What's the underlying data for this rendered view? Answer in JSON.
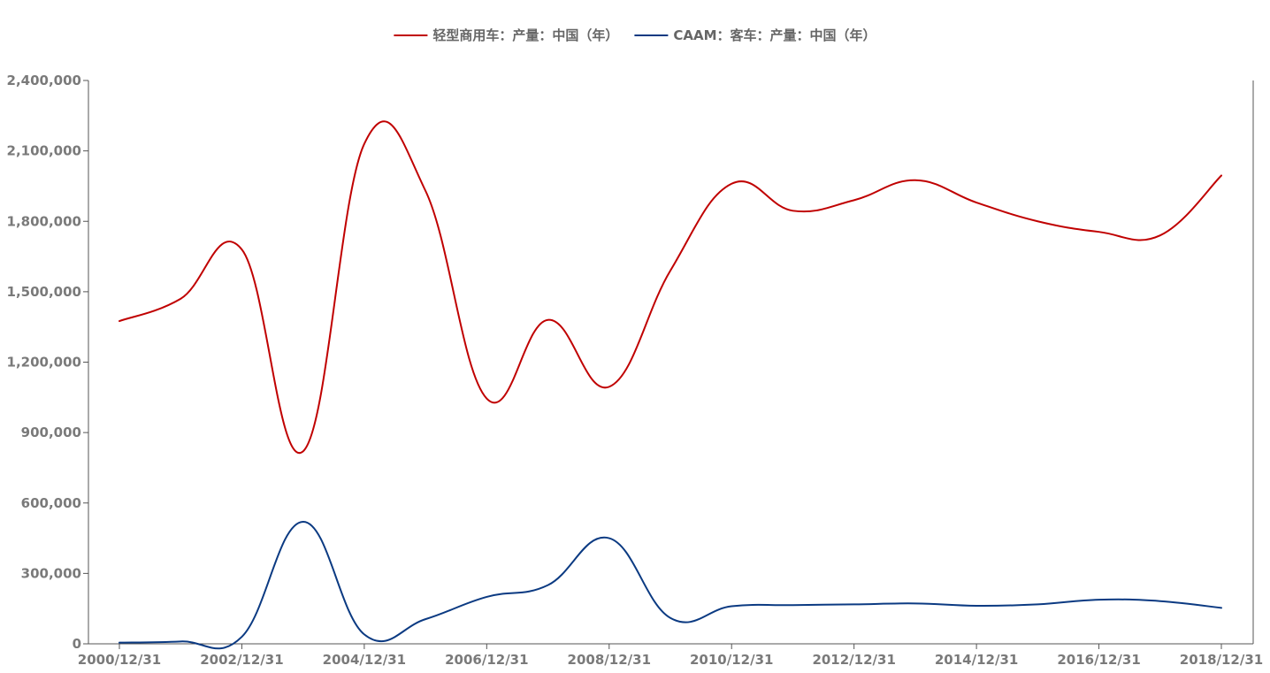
{
  "chart_data": {
    "type": "line",
    "title": "",
    "xlabel": "",
    "ylabel": "",
    "ylim": [
      0,
      2400000
    ],
    "yticks": [
      0,
      300000,
      600000,
      900000,
      1200000,
      1500000,
      1800000,
      2100000,
      2400000
    ],
    "ytick_labels": [
      "0",
      "300,000",
      "600,000",
      "900,000",
      "1,200,000",
      "1,500,000",
      "1,800,000",
      "2,100,000",
      "2,400,000"
    ],
    "xticks": [
      "2000/12/31",
      "2002/12/31",
      "2004/12/31",
      "2006/12/31",
      "2008/12/31",
      "2010/12/31",
      "2012/12/31",
      "2014/12/31",
      "2016/12/31",
      "2018/12/31"
    ],
    "x": [
      "2000/12/31",
      "2001/12/31",
      "2002/12/31",
      "2003/12/31",
      "2004/12/31",
      "2005/12/31",
      "2006/12/31",
      "2007/12/31",
      "2008/12/31",
      "2009/12/31",
      "2010/12/31",
      "2011/12/31",
      "2012/12/31",
      "2013/12/31",
      "2014/12/31",
      "2015/12/31",
      "2016/12/31",
      "2017/12/31",
      "2018/12/31"
    ],
    "grid": false,
    "legend_position": "top-center",
    "series": [
      {
        "name": "轻型商用车：产量：中国（年）",
        "color": "#c00000",
        "values": [
          1375000,
          1470000,
          1680000,
          820000,
          2130000,
          1930000,
          1045000,
          1380000,
          1095000,
          1590000,
          1960000,
          1845000,
          1890000,
          1975000,
          1880000,
          1800000,
          1755000,
          1740000,
          1995000
        ]
      },
      {
        "name": "CAAM：客车：产量：中国（年）",
        "color": "#0b3a82",
        "values": [
          5000,
          10000,
          30000,
          520000,
          40000,
          105000,
          200000,
          250000,
          450000,
          110000,
          160000,
          165000,
          168000,
          172000,
          162000,
          168000,
          188000,
          182000,
          153000
        ]
      }
    ]
  }
}
